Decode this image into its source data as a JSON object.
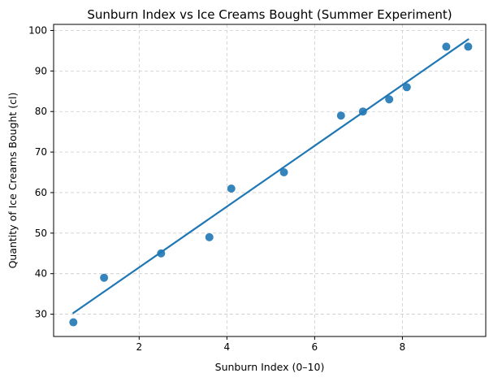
{
  "chart_data": {
    "type": "scatter",
    "title": "Sunburn Index vs Ice Creams Bought (Summer Experiment)",
    "xlabel": "Sunburn Index (0–10)",
    "ylabel": "Quantity of Ice Creams Bought (cl)",
    "xlim": [
      0.05,
      9.9
    ],
    "ylim": [
      24.5,
      101.5
    ],
    "xticks": [
      2,
      4,
      6,
      8
    ],
    "yticks": [
      30,
      40,
      50,
      60,
      70,
      80,
      90,
      100
    ],
    "grid": true,
    "legend": "none",
    "point_color": "#1f77b4",
    "line_color": "#1f77b4",
    "points": [
      {
        "x": 0.5,
        "y": 28
      },
      {
        "x": 1.2,
        "y": 39
      },
      {
        "x": 2.5,
        "y": 45
      },
      {
        "x": 3.6,
        "y": 49
      },
      {
        "x": 4.1,
        "y": 61
      },
      {
        "x": 5.3,
        "y": 65
      },
      {
        "x": 6.6,
        "y": 79
      },
      {
        "x": 7.1,
        "y": 80
      },
      {
        "x": 7.7,
        "y": 83
      },
      {
        "x": 8.1,
        "y": 86
      },
      {
        "x": 9.0,
        "y": 96
      },
      {
        "x": 9.5,
        "y": 96
      }
    ],
    "fit_line": [
      {
        "x": 0.5,
        "y": 30.3
      },
      {
        "x": 9.5,
        "y": 97.8
      }
    ]
  }
}
